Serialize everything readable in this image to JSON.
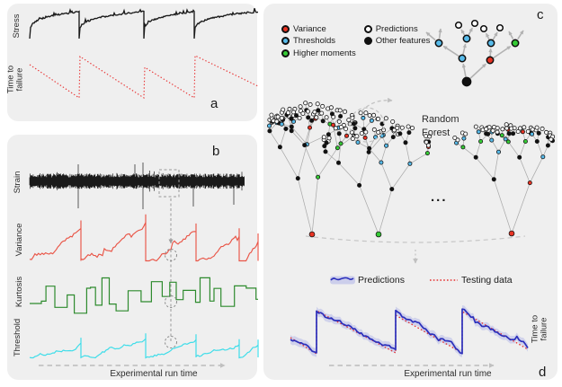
{
  "panel_a": {
    "label": "a",
    "stress_ylabel": "Stress",
    "ttf_ylabel": "Time to failure"
  },
  "panel_b": {
    "label": "b",
    "strain_ylabel": "Strain",
    "variance_ylabel": "Variance",
    "kurtosis_ylabel": "Kurtosis",
    "threshold_ylabel": "Threshold",
    "xlabel": "Experimental run time"
  },
  "panel_c": {
    "label": "c",
    "legend": [
      {
        "label": "Variance",
        "color": "#e83323"
      },
      {
        "label": "Thresholds",
        "color": "#58bbea"
      },
      {
        "label": "Higher moments",
        "color": "#35cb35"
      },
      {
        "label": "Predictions",
        "color": "#ffffff"
      },
      {
        "label": "Other features",
        "color": "#111111"
      }
    ],
    "forest_label": "Random Forest",
    "ellipsis": "..."
  },
  "panel_d": {
    "label": "d",
    "legend_predictions": "Predictions",
    "legend_testing": "Testing data",
    "ylabel": "Time to failure",
    "xlabel": "Experimental run time"
  },
  "colors": {
    "panel_bg": "#efefef",
    "stress": "#1a1a1a",
    "strain": "#1a1a1a",
    "ttf_red": "#e93434",
    "variance": "#e95547",
    "kurtosis": "#2e8b2e",
    "threshold": "#3fdde9",
    "predictions_blue": "#2b2fbb",
    "band": "#c5c8ea",
    "testing_red": "#e53030",
    "node_red": "#e83323",
    "node_blue": "#58bbea",
    "node_green": "#35cb35",
    "node_black": "#111111",
    "node_white": "#ffffff",
    "edge_gray": "#ababab",
    "dash_gray": "#c2c2c2"
  }
}
